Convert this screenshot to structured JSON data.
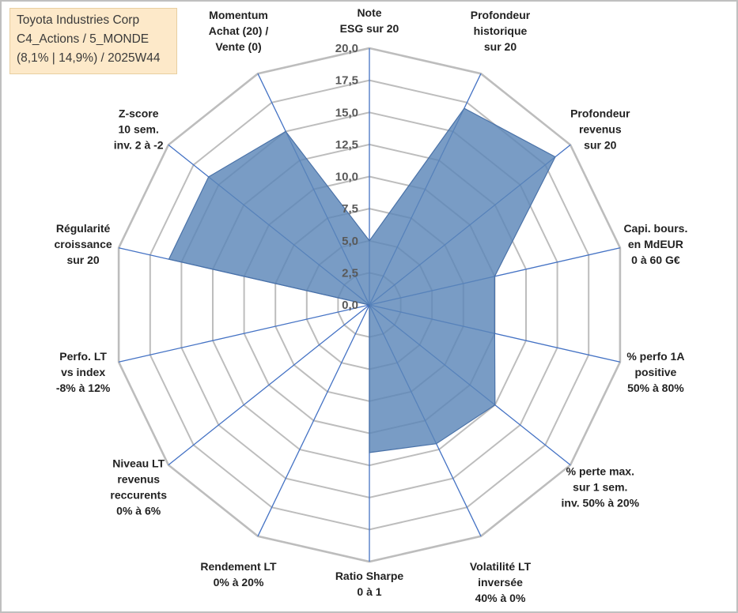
{
  "info_box": {
    "line1": "Toyota Industries Corp",
    "line2": "C4_Actions / 5_MONDE",
    "line3": "(8,1% | 14,9%) / 2025W44"
  },
  "colors": {
    "fill": "#5b86b8",
    "stroke": "#4a72a8",
    "spokes": "#4472c4",
    "grid": "#bdbdbd",
    "info_bg": "#fde9c9"
  },
  "chart_data": {
    "type": "radar",
    "title": "",
    "rmin": 0,
    "rmax": 20,
    "ticks": [
      "0,0",
      "2,5",
      "5,0",
      "7,5",
      "10,0",
      "12,5",
      "15,0",
      "17,5",
      "20,0"
    ],
    "grid": true,
    "axes": [
      {
        "label": [
          "Note",
          "ESG sur 20"
        ],
        "value": 5
      },
      {
        "label": [
          "Profondeur",
          "historique",
          "sur 20"
        ],
        "value": 17
      },
      {
        "label": [
          "Profondeur",
          "revenus",
          "sur 20"
        ],
        "value": 18.5
      },
      {
        "label": [
          "Capi. bours.",
          "en MdEUR",
          "0 à 60 G€"
        ],
        "value": 10
      },
      {
        "label": [
          "% perfo 1A",
          "positive",
          "50% à 80%"
        ],
        "value": 10
      },
      {
        "label": [
          "% perte max.",
          "sur 1 sem.",
          "inv. 50% à 20%"
        ],
        "value": 12.5
      },
      {
        "label": [
          "Volatilité LT",
          "inversée",
          "40% à 0%"
        ],
        "value": 12
      },
      {
        "label": [
          "Ratio Sharpe",
          "0 à 1"
        ],
        "value": 11.5
      },
      {
        "label": [
          "Rendement LT",
          "0% à 20%"
        ],
        "value": 0
      },
      {
        "label": [
          "Niveau LT",
          "revenus",
          "reccurents",
          "0% à 6%"
        ],
        "value": 0
      },
      {
        "label": [
          "Perfo. LT",
          "vs index",
          "-8% à 12%"
        ],
        "value": 0
      },
      {
        "label": [
          "Régularité",
          "croissance",
          "sur 20"
        ],
        "value": 16
      },
      {
        "label": [
          "Z-score",
          "10 sem.",
          "inv. 2 à -2"
        ],
        "value": 16
      },
      {
        "label": [
          "Momentum",
          "Achat (20) /",
          "Vente (0)"
        ],
        "value": 15
      }
    ]
  }
}
